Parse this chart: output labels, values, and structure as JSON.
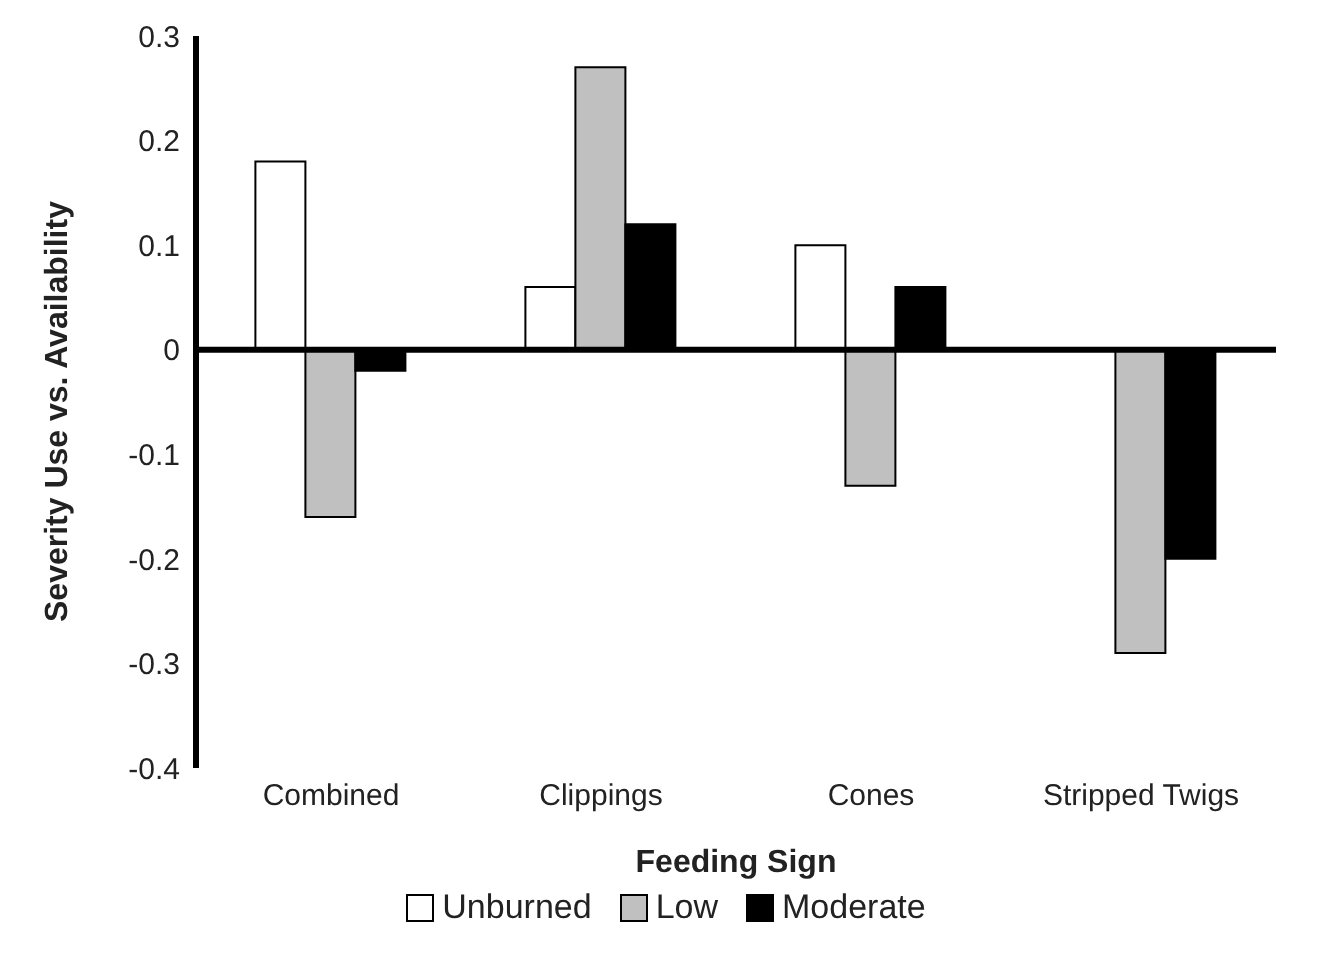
{
  "chart_data": {
    "type": "bar",
    "xlabel": "Feeding Sign",
    "ylabel": "Severity Use vs. Availability",
    "categories": [
      "Combined",
      "Clippings",
      "Cones",
      "Stripped Twigs"
    ],
    "series": [
      {
        "name": "Unburned",
        "color": "#ffffff",
        "values": [
          0.18,
          0.06,
          0.1,
          0
        ]
      },
      {
        "name": "Low",
        "color": "#c0c0c0",
        "values": [
          -0.16,
          0.27,
          -0.13,
          -0.29
        ]
      },
      {
        "name": "Moderate",
        "color": "#000000",
        "values": [
          -0.02,
          0.12,
          0.06,
          -0.2
        ]
      }
    ],
    "ylim": [
      -0.4,
      0.3
    ],
    "yticks": [
      -0.4,
      -0.3,
      -0.2,
      -0.1,
      0,
      0.1,
      0.2,
      0.3
    ],
    "legend": "bottom"
  }
}
